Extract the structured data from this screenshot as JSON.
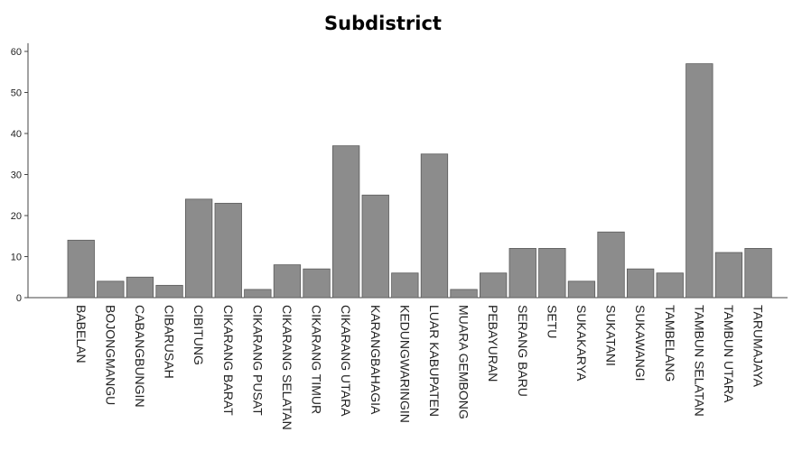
{
  "chart_data": {
    "type": "bar",
    "title": "Subdistrict",
    "xlabel": "",
    "ylabel": "",
    "ylim": [
      0,
      62
    ],
    "yticks": [
      0,
      10,
      20,
      30,
      40,
      50,
      60
    ],
    "bar_color": "#8c8c8c",
    "grid": false,
    "categories": [
      "BABELAN",
      "BOJONGMANGU",
      "CABANGBUNGIN",
      "CIBARUSAH",
      "CIBITUNG",
      "CIKARANG BARAT",
      "CIKARANG PUSAT",
      "CIKARANG SELATAN",
      "CIKARANG TIMUR",
      "CIKARANG UTARA",
      "KARANGBAHAGIA",
      "KEDUNGWARINGIN",
      "LUAR KABUPATEN",
      "MUARA GEMBONG",
      "PEBAYURAN",
      "SERANG BARU",
      "SETU",
      "SUKAKARYA",
      "SUKATANI",
      "SUKAWANGI",
      "TAMBELANG",
      "TAMBUN SELATAN",
      "TAMBUN UTARA",
      "TARUMAJAYA"
    ],
    "values": [
      14,
      4,
      5,
      3,
      24,
      23,
      2,
      8,
      7,
      37,
      25,
      6,
      35,
      2,
      6,
      12,
      12,
      4,
      16,
      7,
      6,
      57,
      11,
      12
    ]
  }
}
